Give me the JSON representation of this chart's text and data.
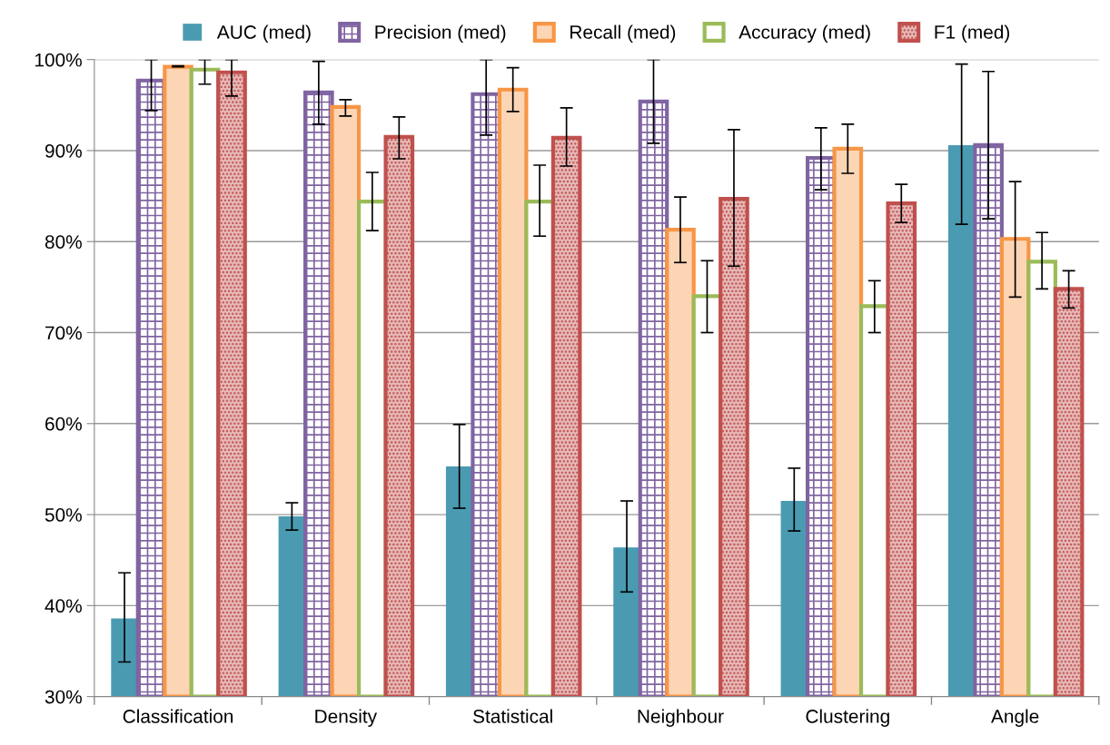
{
  "chart_data": {
    "type": "bar",
    "categories": [
      "Classification",
      "Density",
      "Statistical",
      "Neighbour",
      "Clustering",
      "Angle"
    ],
    "series": [
      {
        "name": "AUC (med)",
        "color": "#4a9bb2",
        "values": [
          38.6,
          49.8,
          55.3,
          46.4,
          51.5,
          90.6
        ],
        "errors": [
          [
            33.8,
            43.6
          ],
          [
            48.3,
            51.3
          ],
          [
            50.7,
            59.9
          ],
          [
            41.5,
            51.5
          ],
          [
            48.2,
            55.1
          ],
          [
            81.9,
            99.5
          ]
        ]
      },
      {
        "name": "Precision (med)",
        "color": "#8064a2",
        "values": [
          97.7,
          96.4,
          96.2,
          95.4,
          89.2,
          90.6
        ],
        "errors": [
          [
            94.4,
            100
          ],
          [
            92.9,
            99.8
          ],
          [
            91.7,
            100
          ],
          [
            90.8,
            100
          ],
          [
            85.7,
            92.5
          ],
          [
            82.5,
            98.7
          ]
        ]
      },
      {
        "name": "Recall (med)",
        "color": "#f79646",
        "values": [
          99.2,
          94.8,
          96.7,
          81.3,
          90.2,
          80.3
        ],
        "errors": [
          [
            99.2,
            99.3
          ],
          [
            93.8,
            95.6
          ],
          [
            94.3,
            99.1
          ],
          [
            77.7,
            84.9
          ],
          [
            87.5,
            92.9
          ],
          [
            73.9,
            86.6
          ]
        ]
      },
      {
        "name": "Accuracy (med)",
        "color": "#9bbb59",
        "values": [
          98.9,
          84.4,
          84.4,
          74.0,
          72.9,
          77.8
        ],
        "errors": [
          [
            97.3,
            100
          ],
          [
            81.2,
            87.6
          ],
          [
            80.6,
            88.4
          ],
          [
            70.0,
            77.9
          ],
          [
            70.0,
            75.7
          ],
          [
            74.8,
            81.0
          ]
        ]
      },
      {
        "name": "F1 (med)",
        "color": "#c0504d",
        "values": [
          98.6,
          91.5,
          91.4,
          84.7,
          84.2,
          74.8
        ],
        "errors": [
          [
            96.0,
            100
          ],
          [
            89.1,
            93.7
          ],
          [
            88.3,
            94.7
          ],
          [
            77.3,
            92.3
          ],
          [
            82.1,
            86.3
          ],
          [
            72.7,
            76.8
          ]
        ]
      }
    ],
    "ylim": [
      30,
      100
    ],
    "yticks": [
      {
        "value": 30,
        "label": "30%"
      },
      {
        "value": 40,
        "label": "40%"
      },
      {
        "value": 50,
        "label": "50%"
      },
      {
        "value": 60,
        "label": "60%"
      },
      {
        "value": 70,
        "label": "70%"
      },
      {
        "value": 80,
        "label": "80%"
      },
      {
        "value": 90,
        "label": "90%"
      },
      {
        "value": 100,
        "label": "100%"
      }
    ],
    "grid": "y",
    "legend": "top"
  }
}
